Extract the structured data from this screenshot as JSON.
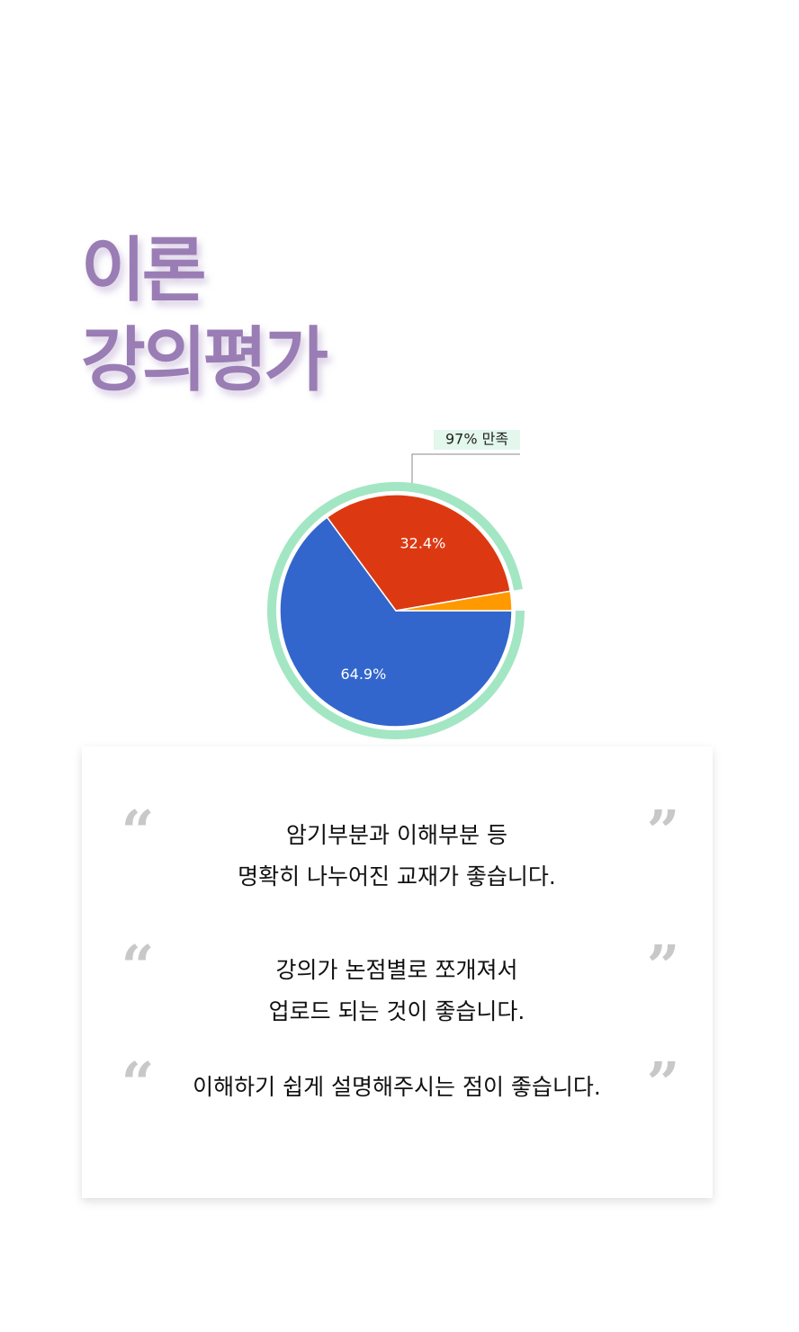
{
  "header": {
    "title_lines": [
      "이론",
      "강의평가"
    ]
  },
  "chart_data": {
    "type": "pie",
    "values": [
      64.9,
      32.4,
      2.7
    ],
    "value_labels": [
      "64.9%",
      "32.4%",
      null
    ],
    "colors": [
      "#3366cc",
      "#dc3912",
      "#ff9900"
    ],
    "annotation": "97% 만족",
    "ring_color": "#a3e6c4"
  },
  "reviews": {
    "open_quote": "“",
    "close_quote": "”",
    "items": [
      [
        "암기부분과 이해부분 등",
        "명확히 나누어진 교재가 좋습니다."
      ],
      [
        "강의가 논점별로 쪼개져서",
        "업로드 되는 것이 좋습니다."
      ],
      [
        "이해하기 쉽게 설명해주시는 점이 좋습니다."
      ]
    ]
  }
}
